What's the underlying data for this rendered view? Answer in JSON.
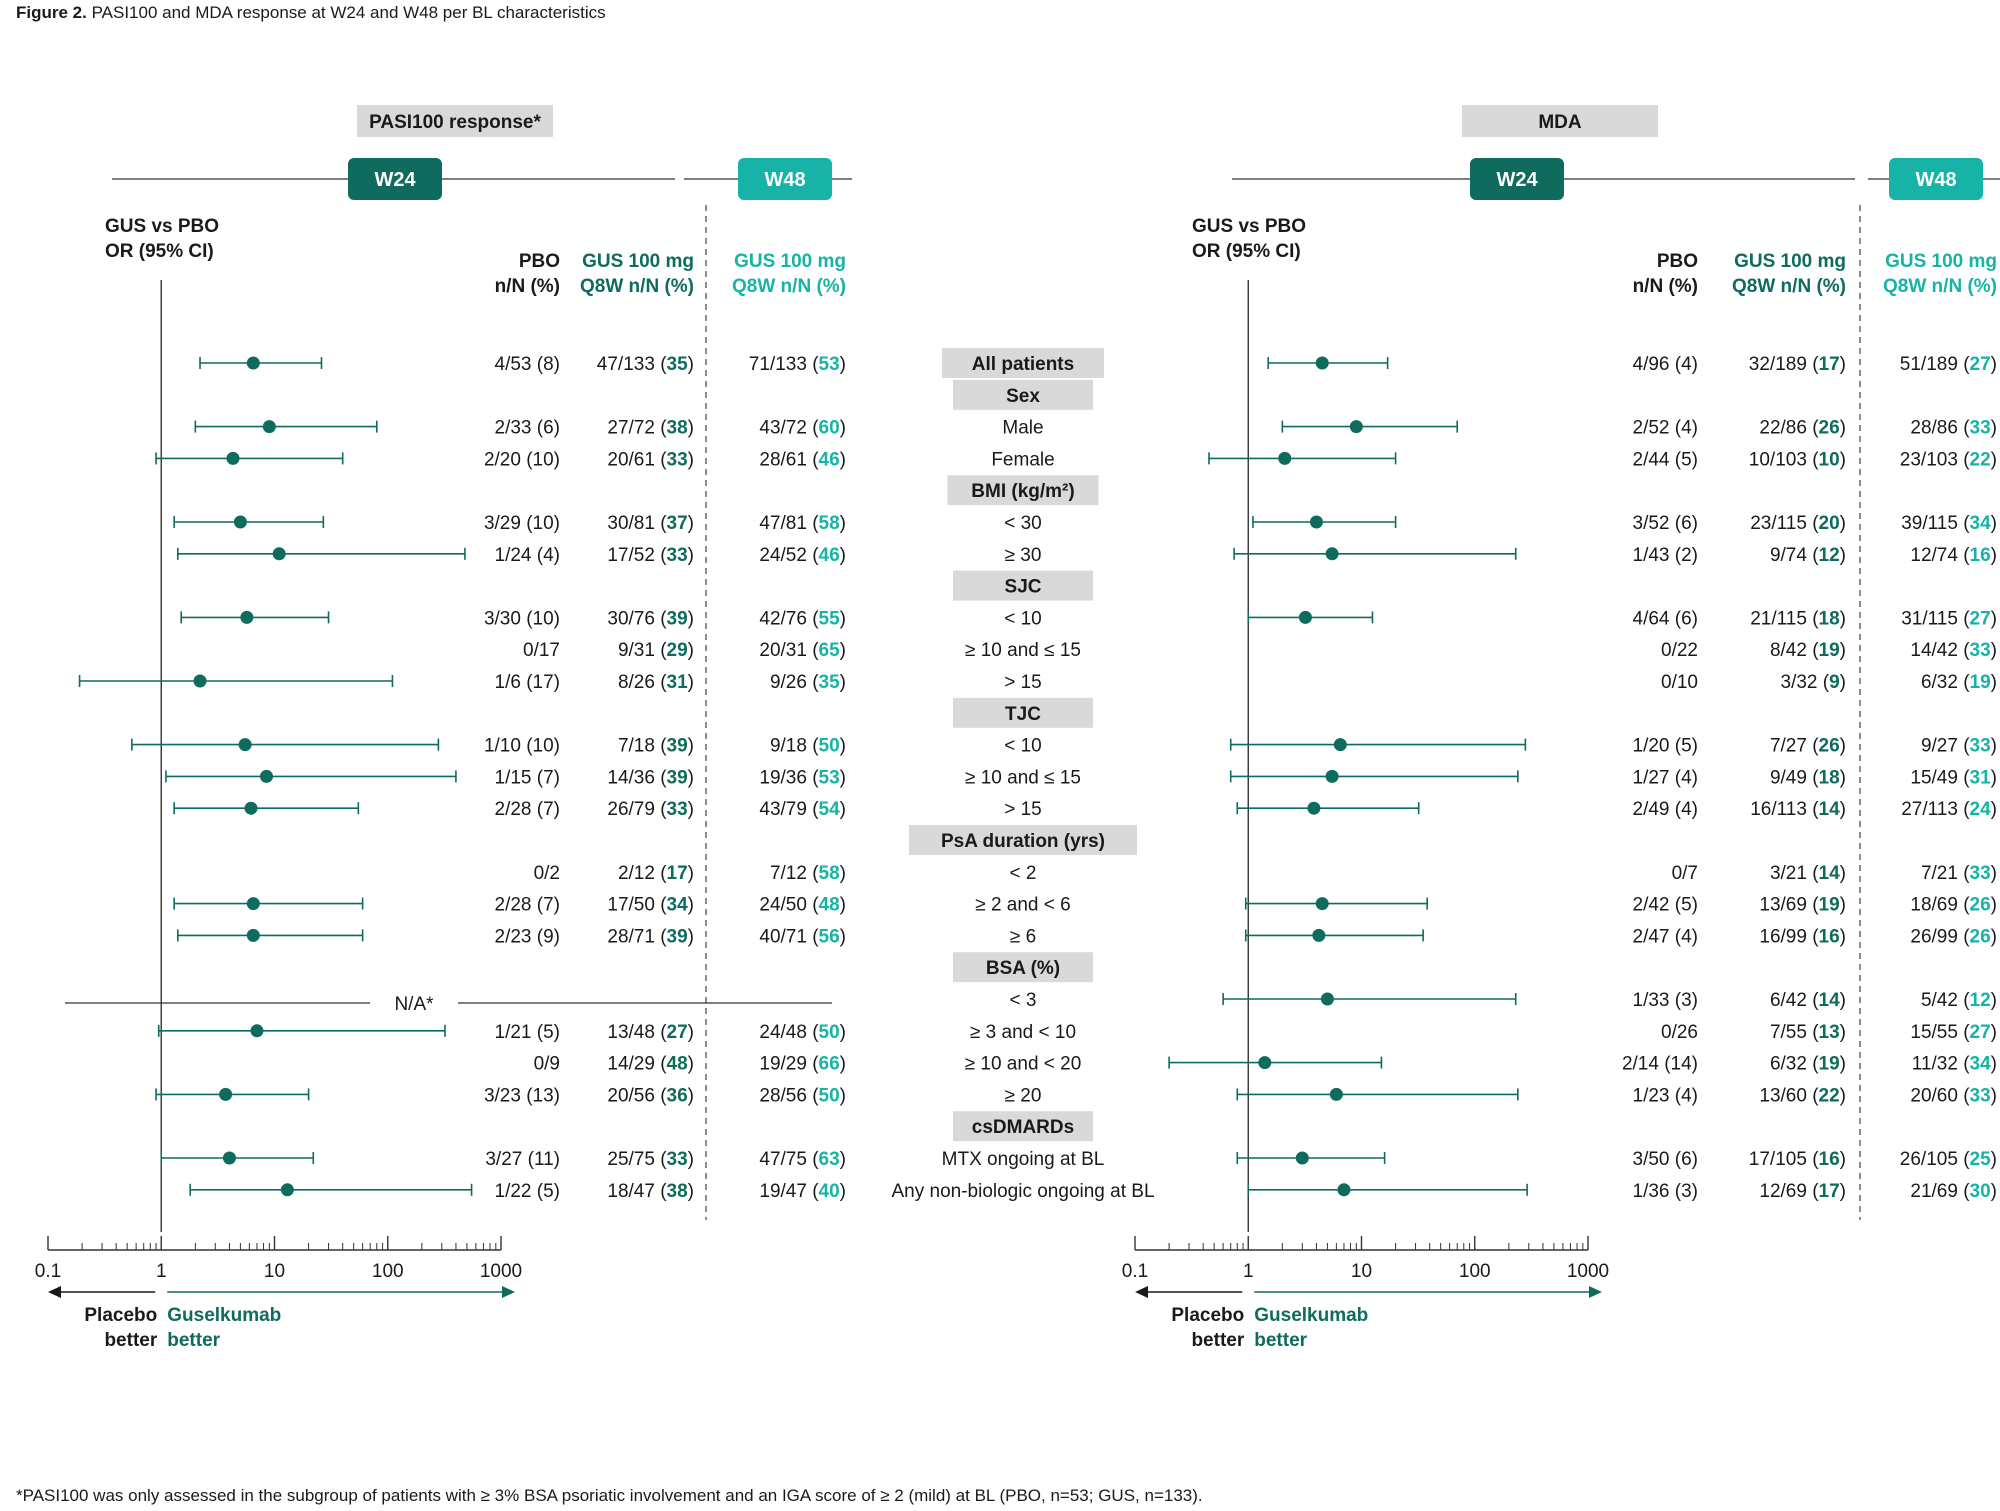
{
  "figure": {
    "title_bold": "Figure 2.",
    "title_rest": " PASI100 and MDA response at W24 and W48 per BL characteristics",
    "footnote": "*PASI100 was only assessed in the subgroup of patients with ≥ 3% BSA psoriatic involvement and an IGA score of ≥ 2 (mild) at BL (PBO, n=53; GUS, n=133).",
    "colors": {
      "dark_teal": "#0f6b5e",
      "light_teal": "#17b3a6",
      "grey_box": "#d9d9d9",
      "text": "#1a1a1a"
    }
  },
  "rows": [
    {
      "type": "row",
      "label": "All patients",
      "label_boxed": true
    },
    {
      "type": "header",
      "label": "Sex"
    },
    {
      "type": "row",
      "label": "Male"
    },
    {
      "type": "row",
      "label": "Female"
    },
    {
      "type": "header",
      "label": "BMI (kg/m²)"
    },
    {
      "type": "row",
      "label": "< 30"
    },
    {
      "type": "row",
      "label": "≥ 30"
    },
    {
      "type": "header",
      "label": "SJC"
    },
    {
      "type": "row",
      "label": "< 10"
    },
    {
      "type": "row",
      "label": "≥ 10 and ≤ 15"
    },
    {
      "type": "row",
      "label": "> 15"
    },
    {
      "type": "header",
      "label": "TJC"
    },
    {
      "type": "row",
      "label": "< 10"
    },
    {
      "type": "row",
      "label": "≥ 10 and ≤ 15"
    },
    {
      "type": "row",
      "label": "> 15"
    },
    {
      "type": "header",
      "label": "PsA duration (yrs)"
    },
    {
      "type": "row",
      "label": "< 2"
    },
    {
      "type": "row",
      "label": "≥ 2 and < 6"
    },
    {
      "type": "row",
      "label": "≥ 6"
    },
    {
      "type": "header",
      "label": "BSA (%)"
    },
    {
      "type": "row",
      "label": "< 3"
    },
    {
      "type": "row",
      "label": "≥ 3 and < 10"
    },
    {
      "type": "row",
      "label": "≥ 10 and < 20"
    },
    {
      "type": "row",
      "label": "≥ 20"
    },
    {
      "type": "header",
      "label": "csDMARDs"
    },
    {
      "type": "row",
      "label": "MTX ongoing at BL"
    },
    {
      "type": "row",
      "label": "Any non-biologic ongoing at BL"
    }
  ],
  "chart_data": [
    {
      "type": "forest",
      "panel": "PASI100 response*",
      "w24_label": "W24",
      "w48_label": "W48",
      "axis_title": [
        "GUS vs PBO",
        "OR (95% CI)"
      ],
      "x_scale": "log",
      "xlim": [
        0.1,
        1000
      ],
      "ticks": [
        "0.1",
        "1",
        "10",
        "100",
        "1000"
      ],
      "reference_line": 1,
      "left_arrow": [
        "Placebo",
        "better"
      ],
      "right_arrow": [
        "Guselkumab",
        "better"
      ],
      "col_headers": {
        "pbo": [
          "PBO",
          "n/N (%)"
        ],
        "gus": [
          "GUS 100 mg",
          "Q8W n/N (%)"
        ],
        "w48": [
          "GUS 100 mg",
          "Q8W n/N (%)"
        ]
      },
      "na_label": "N/A*",
      "points": [
        {
          "row": 0,
          "or": 6.5,
          "lo": 2.2,
          "hi": 26,
          "pbo": "4/53 (8)",
          "gus": "47/133 (",
          "gus_b": "35",
          "w48": "71/133 (",
          "w48_b": "53"
        },
        {
          "row": 2,
          "or": 9.0,
          "lo": 2.0,
          "hi": 80,
          "pbo": "2/33 (6)",
          "gus": "27/72 (",
          "gus_b": "38",
          "w48": "43/72 (",
          "w48_b": "60"
        },
        {
          "row": 3,
          "or": 4.3,
          "lo": 0.9,
          "hi": 40,
          "pbo": "2/20 (10)",
          "gus": "20/61 (",
          "gus_b": "33",
          "w48": "28/61 (",
          "w48_b": "46"
        },
        {
          "row": 5,
          "or": 5.0,
          "lo": 1.3,
          "hi": 27,
          "pbo": "3/29 (10)",
          "gus": "30/81 (",
          "gus_b": "37",
          "w48": "47/81 (",
          "w48_b": "58"
        },
        {
          "row": 6,
          "or": 11.0,
          "lo": 1.4,
          "hi": 480,
          "pbo": "1/24 (4)",
          "gus": "17/52 (",
          "gus_b": "33",
          "w48": "24/52 (",
          "w48_b": "46"
        },
        {
          "row": 8,
          "or": 5.7,
          "lo": 1.5,
          "hi": 30,
          "pbo": "3/30 (10)",
          "gus": "30/76 (",
          "gus_b": "39",
          "w48": "42/76 (",
          "w48_b": "55"
        },
        {
          "row": 9,
          "or": null,
          "lo": null,
          "hi": null,
          "pbo": "0/17",
          "gus": "9/31 (",
          "gus_b": "29",
          "w48": "20/31 (",
          "w48_b": "65"
        },
        {
          "row": 10,
          "or": 2.2,
          "lo": 0.19,
          "hi": 110,
          "pbo": "1/6 (17)",
          "gus": "8/26 (",
          "gus_b": "31",
          "w48": "9/26 (",
          "w48_b": "35"
        },
        {
          "row": 12,
          "or": 5.5,
          "lo": 0.55,
          "hi": 280,
          "pbo": "1/10 (10)",
          "gus": "7/18 (",
          "gus_b": "39",
          "w48": "9/18 (",
          "w48_b": "50"
        },
        {
          "row": 13,
          "or": 8.5,
          "lo": 1.1,
          "hi": 400,
          "pbo": "1/15 (7)",
          "gus": "14/36 (",
          "gus_b": "39",
          "w48": "19/36 (",
          "w48_b": "53"
        },
        {
          "row": 14,
          "or": 6.2,
          "lo": 1.3,
          "hi": 55,
          "pbo": "2/28 (7)",
          "gus": "26/79 (",
          "gus_b": "33",
          "w48": "43/79 (",
          "w48_b": "54"
        },
        {
          "row": 16,
          "or": null,
          "lo": null,
          "hi": null,
          "pbo": "0/2",
          "gus": "2/12 (",
          "gus_b": "17",
          "w48": "7/12 (",
          "w48_b": "58"
        },
        {
          "row": 17,
          "or": 6.5,
          "lo": 1.3,
          "hi": 60,
          "pbo": "2/28 (7)",
          "gus": "17/50 (",
          "gus_b": "34",
          "w48": "24/50 (",
          "w48_b": "48"
        },
        {
          "row": 18,
          "or": 6.5,
          "lo": 1.4,
          "hi": 60,
          "pbo": "2/23 (9)",
          "gus": "28/71 (",
          "gus_b": "39",
          "w48": "40/71 (",
          "w48_b": "56"
        },
        {
          "row": 21,
          "or": 7.0,
          "lo": 0.95,
          "hi": 320,
          "pbo": "1/21 (5)",
          "gus": "13/48 (",
          "gus_b": "27",
          "w48": "24/48 (",
          "w48_b": "50"
        },
        {
          "row": 22,
          "or": null,
          "lo": null,
          "hi": null,
          "pbo": "0/9",
          "gus": "14/29 (",
          "gus_b": "48",
          "w48": "19/29 (",
          "w48_b": "66"
        },
        {
          "row": 23,
          "or": 3.7,
          "lo": 0.9,
          "hi": 20,
          "pbo": "3/23 (13)",
          "gus": "20/56 (",
          "gus_b": "36",
          "w48": "28/56 (",
          "w48_b": "50"
        },
        {
          "row": 25,
          "or": 4.0,
          "lo": 1.0,
          "hi": 22,
          "pbo": "3/27 (11)",
          "gus": "25/75 (",
          "gus_b": "33",
          "w48": "47/75 (",
          "w48_b": "63"
        },
        {
          "row": 26,
          "or": 13.0,
          "lo": 1.8,
          "hi": 550,
          "pbo": "1/22 (5)",
          "gus": "18/47 (",
          "gus_b": "38",
          "w48": "19/47 (",
          "w48_b": "40"
        }
      ]
    },
    {
      "type": "forest",
      "panel": "MDA",
      "w24_label": "W24",
      "w48_label": "W48",
      "axis_title": [
        "GUS vs PBO",
        "OR (95% CI)"
      ],
      "x_scale": "log",
      "xlim": [
        0.1,
        1000
      ],
      "ticks": [
        "0.1",
        "1",
        "10",
        "100",
        "1000"
      ],
      "reference_line": 1,
      "left_arrow": [
        "Placebo",
        "better"
      ],
      "right_arrow": [
        "Guselkumab",
        "better"
      ],
      "col_headers": {
        "pbo": [
          "PBO",
          "n/N (%)"
        ],
        "gus": [
          "GUS 100 mg",
          "Q8W n/N (%)"
        ],
        "w48": [
          "GUS 100 mg",
          "Q8W n/N (%)"
        ]
      },
      "points": [
        {
          "row": 0,
          "or": 4.5,
          "lo": 1.5,
          "hi": 17,
          "pbo": "4/96 (4)",
          "gus": "32/189 (",
          "gus_b": "17",
          "w48": "51/189 (",
          "w48_b": "27"
        },
        {
          "row": 2,
          "or": 9.0,
          "lo": 2.0,
          "hi": 70,
          "pbo": "2/52 (4)",
          "gus": "22/86 (",
          "gus_b": "26",
          "w48": "28/86 (",
          "w48_b": "33"
        },
        {
          "row": 3,
          "or": 2.1,
          "lo": 0.45,
          "hi": 20,
          "pbo": "2/44 (5)",
          "gus": "10/103 (",
          "gus_b": "10",
          "w48": "23/103 (",
          "w48_b": "22"
        },
        {
          "row": 5,
          "or": 4.0,
          "lo": 1.1,
          "hi": 20,
          "pbo": "3/52 (6)",
          "gus": "23/115 (",
          "gus_b": "20",
          "w48": "39/115 (",
          "w48_b": "34"
        },
        {
          "row": 6,
          "or": 5.5,
          "lo": 0.75,
          "hi": 230,
          "pbo": "1/43 (2)",
          "gus": "9/74 (",
          "gus_b": "12",
          "w48": "12/74 (",
          "w48_b": "16"
        },
        {
          "row": 8,
          "or": 3.2,
          "lo": 1.0,
          "hi": 12.5,
          "pbo": "4/64 (6)",
          "gus": "21/115 (",
          "gus_b": "18",
          "w48": "31/115 (",
          "w48_b": "27"
        },
        {
          "row": 9,
          "or": null,
          "lo": null,
          "hi": null,
          "pbo": "0/22",
          "gus": "8/42 (",
          "gus_b": "19",
          "w48": "14/42 (",
          "w48_b": "33"
        },
        {
          "row": 10,
          "or": null,
          "lo": null,
          "hi": null,
          "pbo": "0/10",
          "gus": "3/32 (",
          "gus_b": "9",
          "w48": "6/32 (",
          "w48_b": "19"
        },
        {
          "row": 12,
          "or": 6.5,
          "lo": 0.7,
          "hi": 280,
          "pbo": "1/20 (5)",
          "gus": "7/27 (",
          "gus_b": "26",
          "w48": "9/27 (",
          "w48_b": "33"
        },
        {
          "row": 13,
          "or": 5.5,
          "lo": 0.7,
          "hi": 240,
          "pbo": "1/27 (4)",
          "gus": "9/49 (",
          "gus_b": "18",
          "w48": "15/49 (",
          "w48_b": "31"
        },
        {
          "row": 14,
          "or": 3.8,
          "lo": 0.8,
          "hi": 32,
          "pbo": "2/49 (4)",
          "gus": "16/113 (",
          "gus_b": "14",
          "w48": "27/113 (",
          "w48_b": "24"
        },
        {
          "row": 16,
          "or": null,
          "lo": null,
          "hi": null,
          "pbo": "0/7",
          "gus": "3/21 (",
          "gus_b": "14",
          "w48": "7/21 (",
          "w48_b": "33"
        },
        {
          "row": 17,
          "or": 4.5,
          "lo": 0.95,
          "hi": 38,
          "pbo": "2/42 (5)",
          "gus": "13/69 (",
          "gus_b": "19",
          "w48": "18/69 (",
          "w48_b": "26"
        },
        {
          "row": 18,
          "or": 4.2,
          "lo": 0.95,
          "hi": 35,
          "pbo": "2/47 (4)",
          "gus": "16/99 (",
          "gus_b": "16",
          "w48": "26/99 (",
          "w48_b": "26"
        },
        {
          "row": 20,
          "or": 5.0,
          "lo": 0.6,
          "hi": 230,
          "pbo": "1/33 (3)",
          "gus": "6/42 (",
          "gus_b": "14",
          "w48": "5/42 (",
          "w48_b": "12"
        },
        {
          "row": 21,
          "or": null,
          "lo": null,
          "hi": null,
          "pbo": "0/26",
          "gus": "7/55 (",
          "gus_b": "13",
          "w48": "15/55 (",
          "w48_b": "27"
        },
        {
          "row": 22,
          "or": 1.4,
          "lo": 0.2,
          "hi": 15,
          "pbo": "2/14 (14)",
          "gus": "6/32 (",
          "gus_b": "19",
          "w48": "11/32 (",
          "w48_b": "34"
        },
        {
          "row": 23,
          "or": 6.0,
          "lo": 0.8,
          "hi": 240,
          "pbo": "1/23 (4)",
          "gus": "13/60 (",
          "gus_b": "22",
          "w48": "20/60 (",
          "w48_b": "33"
        },
        {
          "row": 25,
          "or": 3.0,
          "lo": 0.8,
          "hi": 16,
          "pbo": "3/50 (6)",
          "gus": "17/105 (",
          "gus_b": "16",
          "w48": "26/105 (",
          "w48_b": "25"
        },
        {
          "row": 26,
          "or": 7.0,
          "lo": 1.0,
          "hi": 290,
          "pbo": "1/36 (3)",
          "gus": "12/69 (",
          "gus_b": "17",
          "w48": "21/69 (",
          "w48_b": "30"
        }
      ]
    }
  ]
}
